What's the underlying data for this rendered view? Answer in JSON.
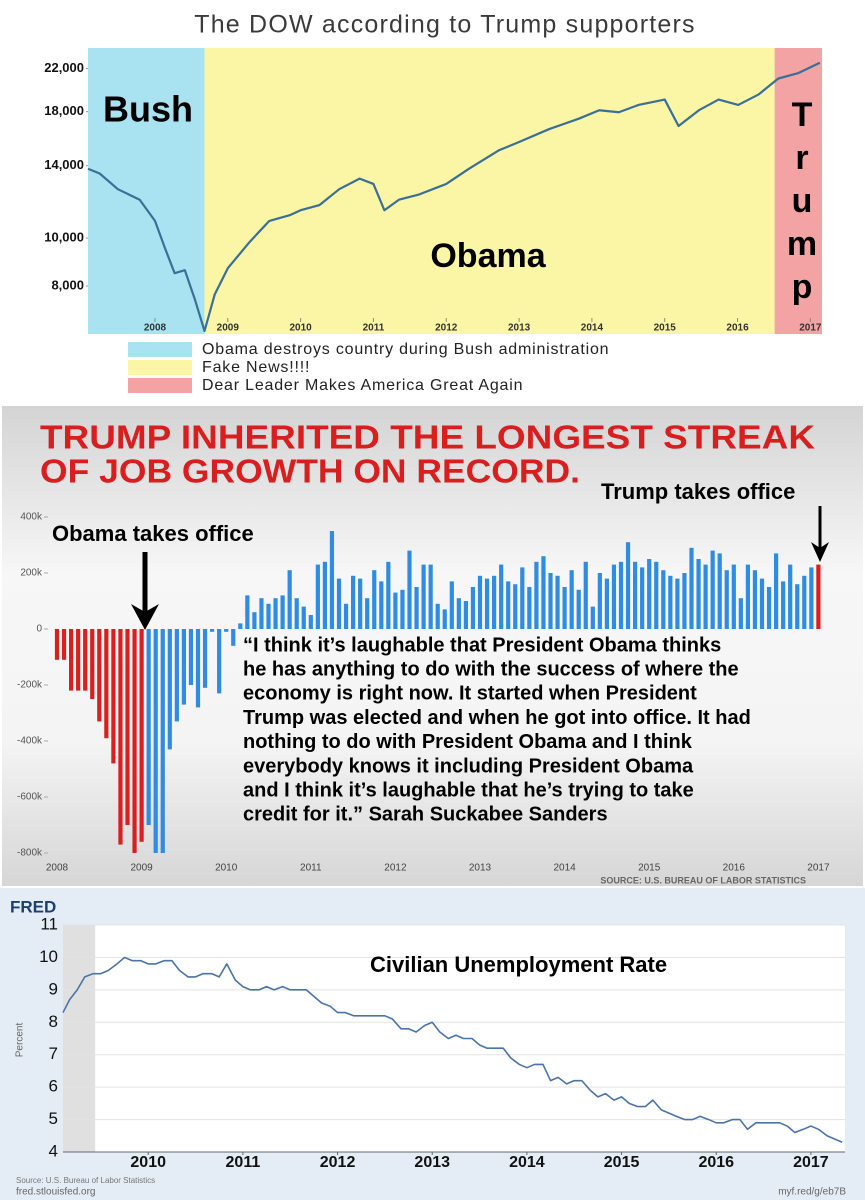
{
  "chart_data": [
    {
      "type": "line",
      "title": "The DOW according to Trump supporters",
      "log_y": true,
      "color": "#3a6f98",
      "regions": [
        {
          "label": "Bush",
          "legend": "Obama destroys country during Bush administration",
          "color": "#a9e3f1",
          "x": [
            2007.08,
            2008.68
          ],
          "vertical": false
        },
        {
          "label": "Obama",
          "legend": "Fake News!!!!",
          "color": "#fbf5a6",
          "x": [
            2008.68,
            2016.51
          ],
          "vertical": false
        },
        {
          "label": "Trump",
          "legend": "Dear Leader Makes America Great Again",
          "color": "#f3a3a3",
          "x": [
            2016.51,
            2017.16
          ],
          "vertical": true
        }
      ],
      "x": [
        2007.08,
        2007.24,
        2007.49,
        2007.79,
        2008.0,
        2008.13,
        2008.27,
        2008.41,
        2008.55,
        2008.68,
        2008.82,
        2009.0,
        2009.3,
        2009.57,
        2009.85,
        2010.0,
        2010.26,
        2010.53,
        2010.81,
        2011.0,
        2011.15,
        2011.35,
        2011.63,
        2012.0,
        2012.31,
        2012.72,
        2013.0,
        2013.41,
        2013.82,
        2014.1,
        2014.37,
        2014.64,
        2015.0,
        2015.19,
        2015.47,
        2015.74,
        2016.01,
        2016.29,
        2016.56,
        2016.83,
        2017.13
      ],
      "values": [
        13800,
        13500,
        12550,
        11950,
        10830,
        9600,
        8490,
        8610,
        7500,
        6490,
        7690,
        8690,
        9820,
        10830,
        11120,
        11380,
        11660,
        12550,
        13180,
        12860,
        11380,
        11950,
        12250,
        12860,
        13800,
        15030,
        15630,
        16590,
        17420,
        18120,
        17950,
        18570,
        19040,
        16840,
        18120,
        19040,
        18570,
        19500,
        21000,
        21520,
        22600
      ],
      "xlim": [
        2007.08,
        2017.16
      ],
      "xticks": [
        2008,
        2009,
        2010,
        2011,
        2012,
        2013,
        2014,
        2015,
        2016,
        2017
      ],
      "ylim": [
        6400,
        24200
      ],
      "yticks": [
        {
          "value": 8000,
          "label": "8,000"
        },
        {
          "value": 10000,
          "label": "10,000"
        },
        {
          "value": 14000,
          "label": "14,000"
        },
        {
          "value": 18000,
          "label": "18,000"
        },
        {
          "value": 22000,
          "label": "22,000"
        }
      ]
    },
    {
      "type": "bar",
      "title": [
        "TRUMP INHERITED THE LONGEST STREAK",
        "OF JOB GROWTH ON RECORD."
      ],
      "color": "#2f8ce2",
      "highlight_color": "#d91f1f",
      "highlighted": [
        0,
        1,
        2,
        3,
        4,
        5,
        6,
        7,
        8,
        9,
        10,
        11,
        12,
        108
      ],
      "categories": [
        "2008",
        null,
        null,
        null,
        null,
        null,
        null,
        null,
        null,
        null,
        null,
        null,
        "2009",
        null,
        null,
        null,
        null,
        null,
        null,
        null,
        null,
        null,
        null,
        null,
        "2010",
        null,
        null,
        null,
        null,
        null,
        null,
        null,
        null,
        null,
        null,
        null,
        "2011",
        null,
        null,
        null,
        null,
        null,
        null,
        null,
        null,
        null,
        null,
        null,
        "2012",
        null,
        null,
        null,
        null,
        null,
        null,
        null,
        null,
        null,
        null,
        null,
        "2013",
        null,
        null,
        null,
        null,
        null,
        null,
        null,
        null,
        null,
        null,
        null,
        "2014",
        null,
        null,
        null,
        null,
        null,
        null,
        null,
        null,
        null,
        null,
        null,
        "2015",
        null,
        null,
        null,
        null,
        null,
        null,
        null,
        null,
        null,
        null,
        null,
        "2016",
        null,
        null,
        null,
        null,
        null,
        null,
        null,
        null,
        null,
        null,
        null,
        "2017"
      ],
      "values": [
        -110000,
        -110000,
        -220000,
        -220000,
        -220000,
        -250000,
        -330000,
        -390000,
        -480000,
        -770000,
        -700000,
        -800000,
        -760000,
        -700000,
        -800000,
        -800000,
        -430000,
        -330000,
        -270000,
        -200000,
        -280000,
        -210000,
        -10000,
        -230000,
        -10000,
        -60000,
        20000,
        120000,
        60000,
        110000,
        90000,
        110000,
        120000,
        210000,
        110000,
        80000,
        50000,
        230000,
        240000,
        350000,
        180000,
        90000,
        190000,
        180000,
        110000,
        210000,
        170000,
        240000,
        130000,
        140000,
        280000,
        150000,
        230000,
        230000,
        90000,
        70000,
        170000,
        110000,
        100000,
        150000,
        190000,
        180000,
        190000,
        230000,
        170000,
        160000,
        220000,
        150000,
        240000,
        260000,
        200000,
        190000,
        150000,
        210000,
        140000,
        240000,
        80000,
        200000,
        180000,
        230000,
        240000,
        310000,
        240000,
        220000,
        250000,
        240000,
        210000,
        190000,
        180000,
        200000,
        290000,
        250000,
        230000,
        280000,
        270000,
        210000,
        230000,
        110000,
        230000,
        210000,
        180000,
        150000,
        270000,
        170000,
        230000,
        160000,
        190000,
        220000,
        230000
      ],
      "ylim": [
        -800000,
        400000
      ],
      "yticks": [
        {
          "value": 400000,
          "label": "400k"
        },
        {
          "value": 200000,
          "label": "200k"
        },
        0,
        {
          "value": -200000,
          "label": "-200k"
        },
        {
          "value": -400000,
          "label": "-400k"
        },
        {
          "value": -600000,
          "label": "-600k"
        },
        {
          "value": -800000,
          "label": "-800k"
        }
      ],
      "annotations": [
        "Obama takes office",
        "Trump takes office"
      ],
      "quote": [
        "“I think it’s laughable that President Obama thinks",
        "he has anything to do with the success of where the",
        "economy is right now. It started when President",
        "Trump was elected and when he got into office. It had",
        "nothing to do with President Obama and I think",
        "everybody knows it including President Obama",
        "and I think it’s laughable that he’s trying  to take",
        "credit for it.” Sarah Suckabee Sanders"
      ],
      "source": "SOURCE: U.S. BUREAU OF LABOR STATISTICS"
    },
    {
      "type": "line",
      "logo": "FRED",
      "title": "Civilian Unemployment Rate",
      "ylabel": "Percent",
      "color": "#4a73a8",
      "grid": true,
      "shaded": [
        2009.1,
        2009.44
      ],
      "x": [
        2009.1,
        2009.17,
        2009.25,
        2009.33,
        2009.42,
        2009.5,
        2009.58,
        2009.67,
        2009.75,
        2009.83,
        2009.92,
        2010.0,
        2010.08,
        2010.17,
        2010.25,
        2010.33,
        2010.42,
        2010.5,
        2010.58,
        2010.67,
        2010.75,
        2010.83,
        2010.92,
        2011.0,
        2011.08,
        2011.17,
        2011.25,
        2011.33,
        2011.42,
        2011.5,
        2011.58,
        2011.67,
        2011.75,
        2011.83,
        2011.92,
        2012.0,
        2012.08,
        2012.17,
        2012.25,
        2012.33,
        2012.42,
        2012.5,
        2012.58,
        2012.67,
        2012.75,
        2012.83,
        2012.92,
        2013.0,
        2013.08,
        2013.17,
        2013.25,
        2013.33,
        2013.42,
        2013.5,
        2013.58,
        2013.67,
        2013.75,
        2013.83,
        2013.92,
        2014.0,
        2014.08,
        2014.17,
        2014.25,
        2014.33,
        2014.42,
        2014.5,
        2014.58,
        2014.67,
        2014.75,
        2014.83,
        2014.92,
        2015.0,
        2015.08,
        2015.17,
        2015.25,
        2015.33,
        2015.42,
        2015.5,
        2015.58,
        2015.67,
        2015.75,
        2015.83,
        2015.92,
        2016.0,
        2016.08,
        2016.17,
        2016.25,
        2016.33,
        2016.42,
        2016.5,
        2016.58,
        2016.67,
        2016.75,
        2016.83,
        2016.92,
        2017.0,
        2017.08,
        2017.17,
        2017.25,
        2017.33
      ],
      "values": [
        8.3,
        8.7,
        9.0,
        9.4,
        9.5,
        9.5,
        9.6,
        9.8,
        10.0,
        9.9,
        9.9,
        9.8,
        9.8,
        9.9,
        9.9,
        9.6,
        9.4,
        9.4,
        9.5,
        9.5,
        9.4,
        9.8,
        9.3,
        9.1,
        9.0,
        9.0,
        9.1,
        9.0,
        9.1,
        9.0,
        9.0,
        9.0,
        8.8,
        8.6,
        8.5,
        8.3,
        8.3,
        8.2,
        8.2,
        8.2,
        8.2,
        8.2,
        8.1,
        7.8,
        7.8,
        7.7,
        7.9,
        8.0,
        7.7,
        7.5,
        7.6,
        7.5,
        7.5,
        7.3,
        7.2,
        7.2,
        7.2,
        6.9,
        6.7,
        6.6,
        6.7,
        6.7,
        6.2,
        6.3,
        6.1,
        6.2,
        6.2,
        5.9,
        5.7,
        5.8,
        5.6,
        5.7,
        5.5,
        5.4,
        5.4,
        5.6,
        5.3,
        5.2,
        5.1,
        5.0,
        5.0,
        5.1,
        5.0,
        4.9,
        4.9,
        5.0,
        5.0,
        4.7,
        4.9,
        4.9,
        4.9,
        4.9,
        4.8,
        4.6,
        4.7,
        4.8,
        4.7,
        4.5,
        4.4,
        4.3
      ],
      "xlim": [
        2009.1,
        2017.36
      ],
      "xticks": [
        2010,
        2011,
        2012,
        2013,
        2014,
        2015,
        2016,
        2017
      ],
      "ylim": [
        4,
        11
      ],
      "yticks": [
        4,
        5,
        6,
        7,
        8,
        9,
        10,
        11
      ],
      "source": "Source: U.S. Bureau of Labor Statistics",
      "site": "fred.stlouisfed.org",
      "link": "myf.red/g/eb7B"
    }
  ]
}
